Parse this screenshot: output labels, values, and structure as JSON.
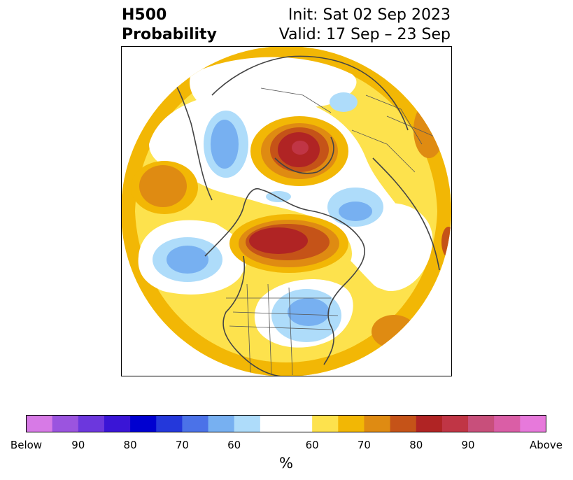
{
  "header": {
    "title_line1": "H500",
    "title_line2": "Probability",
    "init": "Init: Sat 02 Sep 2023",
    "valid": "Valid: 17 Sep – 23 Sep"
  },
  "colorbar": {
    "unit": "%",
    "colors": [
      "#d77ae6",
      "#9b54df",
      "#6c37dd",
      "#3a15d6",
      "#0000d0",
      "#2438db",
      "#4b72e8",
      "#77b0f1",
      "#aedcfa",
      "#ffffff",
      "#ffffff",
      "#fde24d",
      "#f2b705",
      "#df8b12",
      "#c55318",
      "#b02424",
      "#c03545",
      "#c84f7b",
      "#da5ea6",
      "#e779db"
    ],
    "tick_labels": [
      "Below",
      "90",
      "80",
      "70",
      "60",
      "60",
      "70",
      "80",
      "90",
      "Above"
    ]
  },
  "map": {
    "projection": "north-polar-stereographic",
    "colors": {
      "below_60": "#aedcfa",
      "below_70": "#77b0f1",
      "above_50": "#fde24d",
      "above_60": "#f2b705",
      "above_70": "#df8b12",
      "above_75": "#c55318",
      "above_80": "#b02424",
      "above_85": "#c03545",
      "coast": "#444444"
    }
  }
}
